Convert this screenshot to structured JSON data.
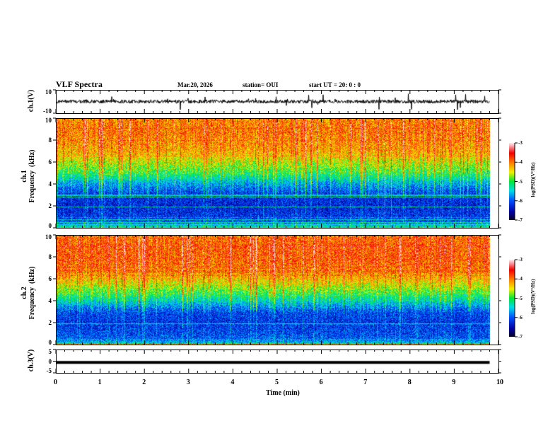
{
  "header": {
    "title": "VLF Spectra",
    "date": "Mar.20, 2026",
    "station": "station= OUI",
    "start": "start  UT =   20: 0  : 0"
  },
  "chart_data": [
    {
      "type": "line",
      "name": "ch1-waveform",
      "ylabel": "ch.1(V)",
      "ylim": [
        -10,
        10
      ],
      "ytick_labels": [
        "10",
        "-10"
      ],
      "xlim": [
        0,
        9.8
      ],
      "baseline": 0,
      "noise_amplitude": 1.5
    },
    {
      "type": "heatmap",
      "name": "ch1-spectrogram",
      "ylabel": "ch.1\nFrequency  (kHz)",
      "ylim": [
        0,
        10
      ],
      "ytick_labels": [
        "0",
        "2",
        "4",
        "6",
        "8",
        "10"
      ],
      "xlim": [
        0,
        9.8
      ],
      "colorbar": {
        "label": "log(PSD)(V²/Hz)",
        "range": [
          -7,
          -3
        ],
        "tick_labels": [
          "-3",
          "-4",
          "-5",
          "-6",
          "-7"
        ]
      },
      "frequency_profile_khz": [
        0,
        0.5,
        1,
        2,
        3,
        4,
        5,
        6,
        7,
        8,
        9,
        10
      ],
      "mean_log_psd": [
        -5.2,
        -6.0,
        -6.2,
        -6.3,
        -6.2,
        -5.7,
        -5.0,
        -4.6,
        -4.2,
        -4.1,
        -4.0,
        -4.1
      ]
    },
    {
      "type": "heatmap",
      "name": "ch2-spectrogram",
      "ylabel": "ch.2\nFrequency  (kHz)",
      "ylim": [
        0,
        10
      ],
      "ytick_labels": [
        "0",
        "2",
        "4",
        "6",
        "8",
        "10"
      ],
      "xlim": [
        0,
        9.8
      ],
      "colorbar": {
        "label": "log(PSD)(V²/Hz)",
        "range": [
          -7,
          -3
        ],
        "tick_labels": [
          "-3",
          "-4",
          "-5",
          "-6",
          "-7"
        ]
      },
      "frequency_profile_khz": [
        0,
        0.5,
        1,
        2,
        3,
        4,
        5,
        6,
        7,
        8,
        9,
        10
      ],
      "mean_log_psd": [
        -5.4,
        -6.0,
        -6.1,
        -6.2,
        -6.1,
        -5.4,
        -4.8,
        -4.3,
        -4.0,
        -3.9,
        -3.9,
        -4.0
      ]
    },
    {
      "type": "line",
      "name": "ch3-waveform",
      "ylabel": "ch.3(V)",
      "ylim": [
        -5,
        5
      ],
      "ytick_labels": [
        "5",
        "0",
        "-5"
      ],
      "xlim": [
        0,
        9.8
      ],
      "baseline": -0.5,
      "noise_amplitude": 0
    }
  ],
  "xaxis": {
    "label": "Time  (min)",
    "range": [
      0,
      10
    ],
    "tick_labels": [
      "0",
      "1",
      "2",
      "3",
      "4",
      "5",
      "6",
      "7",
      "8",
      "9",
      "10"
    ]
  }
}
